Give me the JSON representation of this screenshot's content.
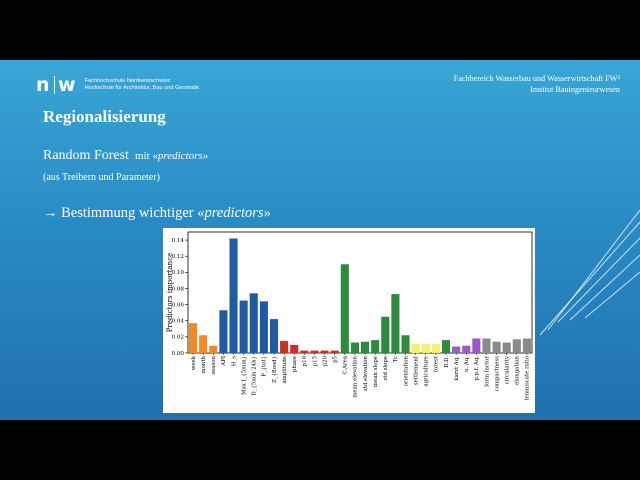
{
  "header": {
    "logo_mark_left": "n",
    "logo_mark_right": "w",
    "logo_line1": "Fachhochschule Nordwestschweiz",
    "logo_line2": "Hochschule für Architektur, Bau und Geomatik",
    "institute_line1": "Fachbereich Wasserbau und Wasserwirtschaft FW²",
    "institute_line2": "Institut Bauingenieurwesen"
  },
  "content": {
    "title": "Regionalisierung",
    "rf_main": "Random Forest",
    "rf_mit": "mit «",
    "rf_predictors": "predictors",
    "rf_close": "»",
    "subtitle": "(aus Treibern und Parameter)",
    "bullet_arrow": "→",
    "bullet_text": " Bestimmung wichtiger «",
    "bullet_predictors": "predictors",
    "bullet_close": "»"
  },
  "colors": {
    "bg_top": "#38a6d6",
    "bg_bottom": "#1f71b0",
    "orange": "#ee8a27",
    "blue": "#1f5aa3",
    "red": "#c9302c",
    "green": "#2e8a3e",
    "yellow": "#f3f06a",
    "purple": "#9b59c4",
    "gray": "#8a8a8a"
  },
  "chart_data": {
    "type": "bar",
    "ylabel": "Predictors importance",
    "ylim": [
      0,
      0.15
    ],
    "yticks": [
      "0.00",
      "0.02",
      "0.04",
      "0.06",
      "0.08",
      "0.10",
      "0.12",
      "0.14"
    ],
    "categories": [
      "week",
      "month",
      "season",
      "API",
      "H_s",
      "Max I_{5min}",
      "D_{5min 24h}",
      "P_{tot}",
      "Z_{flood}",
      "amplitude",
      "phase",
      "p10",
      "p15",
      "p20",
      "p5",
      "C.Area",
      "mean elevation",
      "std elevation",
      "mean slope",
      "std slope",
      "Tc",
      "orientation",
      "settlement",
      "agriculture",
      "forest",
      "D.D.",
      "karst Aq.",
      "u. Aq.",
      "p.p.f. Aq.",
      "form factor",
      "compactness",
      "circularity",
      "elongation",
      "lemniscate ratio"
    ],
    "values": [
      0.037,
      0.022,
      0.009,
      0.053,
      0.142,
      0.065,
      0.074,
      0.064,
      0.042,
      0.015,
      0.01,
      0.003,
      0.003,
      0.003,
      0.003,
      0.11,
      0.013,
      0.014,
      0.016,
      0.045,
      0.073,
      0.022,
      0.011,
      0.011,
      0.011,
      0.016,
      0.008,
      0.009,
      0.018,
      0.018,
      0.014,
      0.013,
      0.017,
      0.018
    ],
    "groups": [
      "orange",
      "orange",
      "orange",
      "blue",
      "blue",
      "blue",
      "blue",
      "blue",
      "blue",
      "red",
      "red",
      "red",
      "red",
      "red",
      "red",
      "green",
      "green",
      "green",
      "green",
      "green",
      "green",
      "green",
      "yellow",
      "yellow",
      "yellow",
      "green",
      "purple",
      "purple",
      "purple",
      "gray",
      "gray",
      "gray",
      "gray",
      "gray"
    ]
  }
}
